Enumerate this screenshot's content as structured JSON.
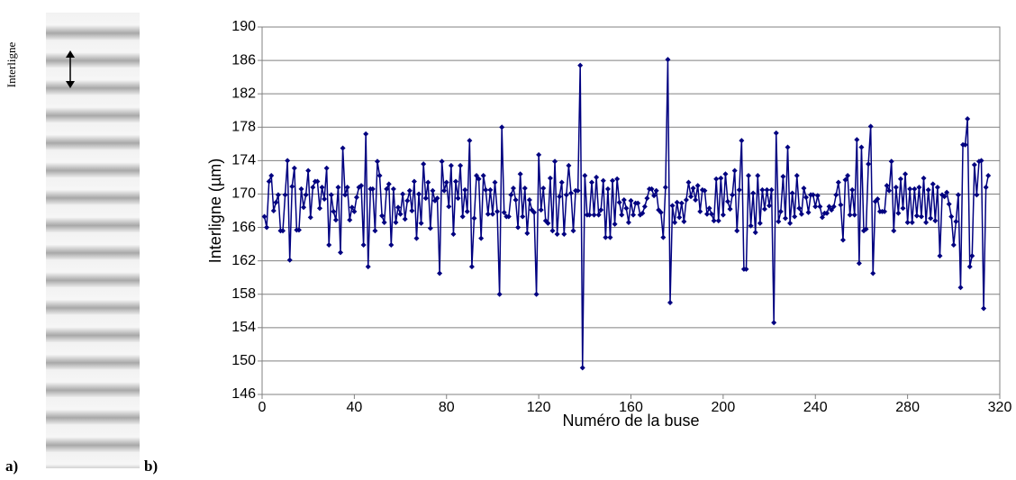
{
  "labels": {
    "image_label": "Interligne",
    "a": "a)",
    "b": "b)"
  },
  "chart_data": {
    "type": "line",
    "xlabel": "Numéro de la buse",
    "ylabel": "Interligne (µm)",
    "xlim": [
      0,
      320
    ],
    "xticks": [
      0,
      40,
      80,
      120,
      160,
      200,
      240,
      280,
      320
    ],
    "ylim": [
      146,
      190
    ],
    "yticks": [
      146,
      150,
      154,
      158,
      162,
      166,
      170,
      174,
      178,
      182,
      186,
      190
    ],
    "grid": true,
    "x": [
      1,
      2,
      3,
      4,
      5,
      6,
      7,
      8,
      9,
      10,
      11,
      12,
      13,
      14,
      15,
      16,
      17,
      18,
      19,
      20,
      21,
      22,
      23,
      24,
      25,
      26,
      27,
      28,
      29,
      30,
      31,
      32,
      33,
      34,
      35,
      36,
      37,
      38,
      39,
      40,
      41,
      42,
      43,
      44,
      45,
      46,
      47,
      48,
      49,
      50,
      51,
      52,
      53,
      54,
      55,
      56,
      57,
      58,
      59,
      60,
      61,
      62,
      63,
      64,
      65,
      66,
      67,
      68,
      69,
      70,
      71,
      72,
      73,
      74,
      75,
      76,
      77,
      78,
      79,
      80,
      81,
      82,
      83,
      84,
      85,
      86,
      87,
      88,
      89,
      90,
      91,
      92,
      93,
      94,
      95,
      96,
      97,
      98,
      99,
      100,
      101,
      102,
      103,
      104,
      105,
      106,
      107,
      108,
      109,
      110,
      111,
      112,
      113,
      114,
      115,
      116,
      117,
      118,
      119,
      120,
      121,
      122,
      123,
      124,
      125,
      126,
      127,
      128,
      129,
      130,
      131,
      132,
      133,
      134,
      135,
      136,
      137,
      138,
      139,
      140,
      141,
      142,
      143,
      144,
      145,
      146,
      147,
      148,
      149,
      150,
      151,
      152,
      153,
      154,
      155,
      156,
      157,
      158,
      159,
      160,
      161,
      162,
      163,
      164,
      165,
      166,
      167,
      168,
      169,
      170,
      171,
      172,
      173,
      174,
      175,
      176,
      177,
      178,
      179,
      180,
      181,
      182,
      183,
      184,
      185,
      186,
      187,
      188,
      189,
      190,
      191,
      192,
      193,
      194,
      195,
      196,
      197,
      198,
      199,
      200,
      201,
      202,
      203,
      204,
      205,
      206,
      207,
      208,
      209,
      210,
      211,
      212,
      213,
      214,
      215,
      216,
      217,
      218,
      219,
      220,
      221,
      222,
      223,
      224,
      225,
      226,
      227,
      228,
      229,
      230,
      231,
      232,
      233,
      234,
      235,
      236,
      237,
      238,
      239,
      240,
      241,
      242,
      243,
      244,
      245,
      246,
      247,
      248,
      249,
      250,
      251,
      252,
      253,
      254,
      255,
      256,
      257,
      258,
      259,
      260,
      261,
      262,
      263,
      264,
      265,
      266,
      267,
      268,
      269,
      270,
      271,
      272,
      273,
      274,
      275,
      276,
      277,
      278,
      279,
      280,
      281,
      282,
      283,
      284,
      285,
      286,
      287,
      288,
      289,
      290,
      291,
      292,
      293,
      294,
      295,
      296,
      297,
      298,
      299,
      300,
      301,
      302,
      303,
      304,
      305,
      306,
      307,
      308,
      309,
      310,
      311,
      312,
      313,
      314,
      315
    ],
    "series": [
      {
        "color": "#000080",
        "values": [
          167.3,
          166,
          171.5,
          172.2,
          168,
          169,
          169.9,
          165.6,
          165.6,
          169.9,
          174,
          162.1,
          170.9,
          173.1,
          165.7,
          165.7,
          170.6,
          168.4,
          169.9,
          172.8,
          167.2,
          170.8,
          171.5,
          171.5,
          168.3,
          170.8,
          169.4,
          173.1,
          163.9,
          169.9,
          167.9,
          166.9,
          170.8,
          163,
          175.5,
          169.9,
          170.8,
          166.9,
          168.4,
          167.9,
          169.6,
          170.8,
          171,
          163.9,
          177.2,
          161.3,
          170.6,
          170.6,
          165.6,
          173.9,
          172.2,
          167.4,
          166.6,
          170.6,
          171.2,
          163.9,
          170.6,
          166.6,
          168.4,
          167.6,
          170,
          167,
          169.2,
          170.4,
          168,
          171.5,
          164.7,
          170,
          166.5,
          173.6,
          169.5,
          171.4,
          165.9,
          170.4,
          169.2,
          169.5,
          160.5,
          173.9,
          170.4,
          171.4,
          168.5,
          173.4,
          165.2,
          171.5,
          169.5,
          173.4,
          167.3,
          170.5,
          167.9,
          176.4,
          161.3,
          167.1,
          172.2,
          171.8,
          164.7,
          172.2,
          170.5,
          167.6,
          170.5,
          167.6,
          171.4,
          167.9,
          158,
          178,
          167.8,
          167.3,
          167.3,
          169.9,
          170.7,
          169.3,
          166,
          172.4,
          167.3,
          170.7,
          165.3,
          169.3,
          168.1,
          167.8,
          158,
          174.7,
          168.1,
          170.7,
          166.8,
          166.5,
          171.9,
          165.6,
          173.9,
          165.2,
          169.7,
          171.4,
          165.2,
          169.9,
          173.4,
          170.1,
          165.6,
          170.4,
          170.4,
          185.4,
          149.2,
          172.2,
          167.5,
          167.5,
          171.4,
          167.5,
          172,
          167.5,
          168.1,
          171.6,
          164.8,
          170.6,
          164.8,
          171.6,
          166.4,
          171.8,
          169,
          167.5,
          169.3,
          168.3,
          166.6,
          169.2,
          167.5,
          168.9,
          168.9,
          167.5,
          167.7,
          168.5,
          169.5,
          170.6,
          170.6,
          169.8,
          170.4,
          168.1,
          167.8,
          164.8,
          170.8,
          186.1,
          157,
          168.6,
          166.6,
          169,
          167.2,
          168.9,
          166.7,
          169.3,
          171.4,
          169.7,
          170.7,
          169.3,
          171,
          167.9,
          170.5,
          170.4,
          167.6,
          168.3,
          167.6,
          166.8,
          171.8,
          166.8,
          171.9,
          167.5,
          172.4,
          169.1,
          168.2,
          169.9,
          172.8,
          165.6,
          170.5,
          176.4,
          161,
          161,
          172.2,
          166.2,
          170.1,
          165.4,
          172.2,
          166.5,
          170.5,
          168.2,
          170.5,
          168.6,
          170.5,
          154.6,
          177.3,
          166.7,
          167.9,
          172.1,
          167.1,
          175.6,
          166.5,
          170.1,
          167.3,
          172.2,
          168.3,
          167.6,
          170.7,
          169.6,
          167.8,
          169.9,
          169.9,
          168.5,
          169.8,
          168.5,
          167.2,
          167.7,
          167.7,
          168.5,
          168.1,
          168.5,
          169.9,
          171.4,
          168.7,
          164.5,
          171.7,
          172.2,
          167.5,
          170.5,
          167.5,
          176.5,
          161.7,
          175.6,
          165.6,
          165.8,
          173.6,
          178.1,
          160.5,
          169.1,
          169.4,
          167.9,
          167.9,
          167.9,
          171,
          170.4,
          173.9,
          165.6,
          170.8,
          167.7,
          171.8,
          168.3,
          172.4,
          166.6,
          170.6,
          166.6,
          170.6,
          167.4,
          170.8,
          167.3,
          171.9,
          166.6,
          170.5,
          167.1,
          171.2,
          166.8,
          170.8,
          162.6,
          169.9,
          169.7,
          170.2,
          168.8,
          167.3,
          163.9,
          166.7,
          169.9,
          158.8,
          175.9,
          175.9,
          179,
          161.3,
          162.6,
          173.5,
          169.9,
          173.9,
          174,
          156.3,
          170.8,
          172.2
        ]
      }
    ]
  }
}
